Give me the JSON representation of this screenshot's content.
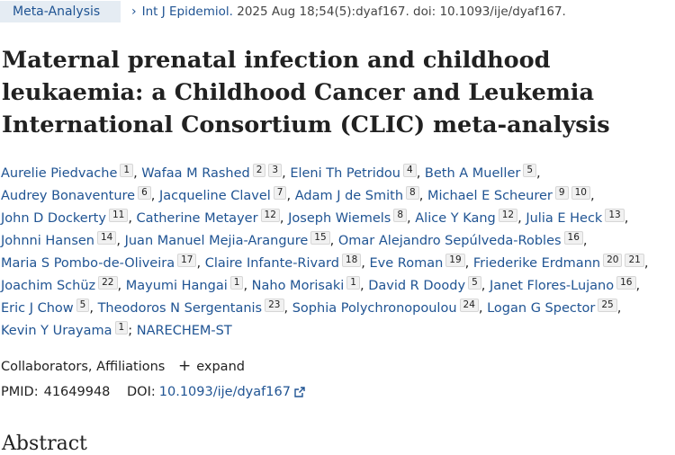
{
  "header": {
    "badge": "Meta-Analysis",
    "journal": "Int J Epidemiol.",
    "citation_rest": "2025 Aug 18;54(5):dyaf167. doi: 10.1093/ije/dyaf167."
  },
  "title": "Maternal prenatal infection and childhood leukaemia: a Childhood Cancer and Leukemia International Consortium (CLIC) meta-analysis",
  "authors": {
    "rows": [
      [
        {
          "name": "Aurelie Piedvache",
          "aff": [
            "1"
          ]
        },
        {
          "name": "Wafaa M Rashed",
          "aff": [
            "2",
            "3"
          ]
        },
        {
          "name": "Eleni Th Petridou",
          "aff": [
            "4"
          ]
        },
        {
          "name": "Beth A Mueller",
          "aff": [
            "5"
          ]
        }
      ],
      [
        {
          "name": "Audrey Bonaventure",
          "aff": [
            "6"
          ]
        },
        {
          "name": "Jacqueline Clavel",
          "aff": [
            "7"
          ]
        },
        {
          "name": "Adam J de Smith",
          "aff": [
            "8"
          ]
        },
        {
          "name": "Michael E Scheurer",
          "aff": [
            "9",
            "10"
          ]
        }
      ],
      [
        {
          "name": "John D Dockerty",
          "aff": [
            "11"
          ]
        },
        {
          "name": "Catherine Metayer",
          "aff": [
            "12"
          ]
        },
        {
          "name": "Joseph Wiemels",
          "aff": [
            "8"
          ]
        },
        {
          "name": "Alice Y Kang",
          "aff": [
            "12"
          ]
        },
        {
          "name": "Julia E Heck",
          "aff": [
            "13"
          ]
        }
      ],
      [
        {
          "name": "Johnni Hansen",
          "aff": [
            "14"
          ]
        },
        {
          "name": "Juan Manuel Mejia-Arangure",
          "aff": [
            "15"
          ]
        },
        {
          "name": "Omar Alejandro Sepúlveda-Robles",
          "aff": [
            "16"
          ]
        }
      ],
      [
        {
          "name": "Maria S Pombo-de-Oliveira",
          "aff": [
            "17"
          ]
        },
        {
          "name": "Claire Infante-Rivard",
          "aff": [
            "18"
          ]
        },
        {
          "name": "Eve Roman",
          "aff": [
            "19"
          ]
        },
        {
          "name": "Friederike Erdmann",
          "aff": [
            "20",
            "21"
          ]
        }
      ],
      [
        {
          "name": "Joachim Schüz",
          "aff": [
            "22"
          ]
        },
        {
          "name": "Mayumi Hangai",
          "aff": [
            "1"
          ]
        },
        {
          "name": "Naho Morisaki",
          "aff": [
            "1"
          ]
        },
        {
          "name": "David R Doody",
          "aff": [
            "5"
          ]
        },
        {
          "name": "Janet Flores-Lujano",
          "aff": [
            "16"
          ]
        }
      ],
      [
        {
          "name": "Eric J Chow",
          "aff": [
            "5"
          ]
        },
        {
          "name": "Theodoros N Sergentanis",
          "aff": [
            "23"
          ]
        },
        {
          "name": "Sophia Polychronopoulou",
          "aff": [
            "24"
          ]
        },
        {
          "name": "Logan G Spector",
          "aff": [
            "25"
          ]
        }
      ],
      [
        {
          "name": "Kevin Y Urayama",
          "aff": [
            "1"
          ]
        }
      ]
    ],
    "group": "NARECHEM-ST"
  },
  "collaborators": {
    "label": "Collaborators, Affiliations",
    "expand_label": "expand"
  },
  "ids": {
    "pmid_label": "PMID:",
    "pmid": "41649948",
    "doi_label": "DOI:",
    "doi": "10.1093/ije/dyaf167"
  },
  "abstract_heading": "Abstract"
}
